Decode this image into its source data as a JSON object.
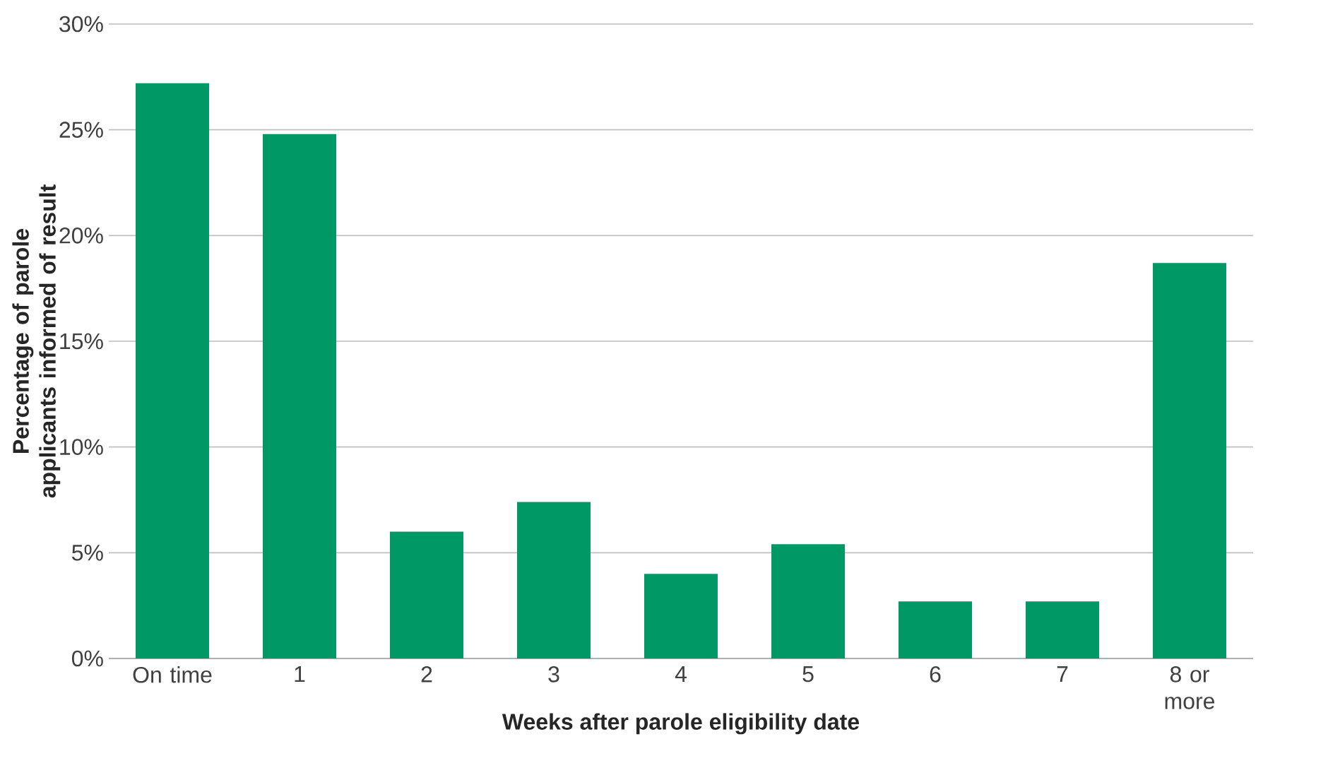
{
  "chart_data": {
    "type": "bar",
    "xlabel": "Weeks after parole eligibility date",
    "ylabel": "Percentage of parole applicants informed of result",
    "categories": [
      "On time",
      "1",
      "2",
      "3",
      "4",
      "5",
      "6",
      "7",
      "8 or more"
    ],
    "values": [
      27.2,
      24.8,
      6.0,
      7.4,
      4.0,
      5.4,
      2.7,
      2.7,
      18.7
    ],
    "color": "#009966",
    "ylim": [
      0,
      30
    ],
    "yticks": [
      {
        "value": 0,
        "label": "0%"
      },
      {
        "value": 5,
        "label": "5%"
      },
      {
        "value": 10,
        "label": "10%"
      },
      {
        "value": 15,
        "label": "15%"
      },
      {
        "value": 20,
        "label": "20%"
      },
      {
        "value": 25,
        "label": "25%"
      },
      {
        "value": 30,
        "label": "30%"
      }
    ],
    "grid": "y"
  }
}
